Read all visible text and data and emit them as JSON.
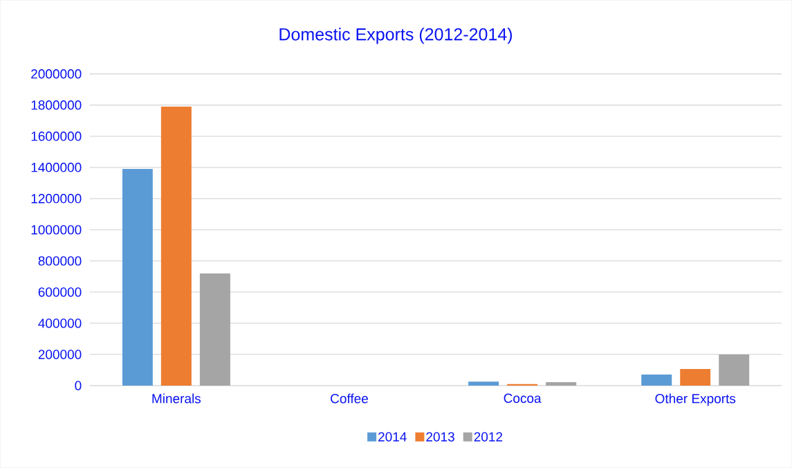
{
  "chart_data": {
    "type": "bar",
    "title": "Domestic Exports (2012-2014)",
    "categories": [
      "Minerals",
      "Coffee",
      "Cocoa",
      "Other Exports"
    ],
    "series": [
      {
        "name": "2014",
        "color": "#5b9bd5",
        "values": [
          1390000,
          0,
          25000,
          71000
        ]
      },
      {
        "name": "2013",
        "color": "#ed7d31",
        "values": [
          1790000,
          0,
          10000,
          107000
        ]
      },
      {
        "name": "2012",
        "color": "#a5a5a5",
        "values": [
          720000,
          0,
          22000,
          200000
        ]
      }
    ],
    "ylim": [
      0,
      2000000
    ],
    "yticks": [
      0,
      200000,
      400000,
      600000,
      800000,
      1000000,
      1200000,
      1400000,
      1600000,
      1800000,
      2000000
    ],
    "grid": "y",
    "legend": "bottom"
  }
}
